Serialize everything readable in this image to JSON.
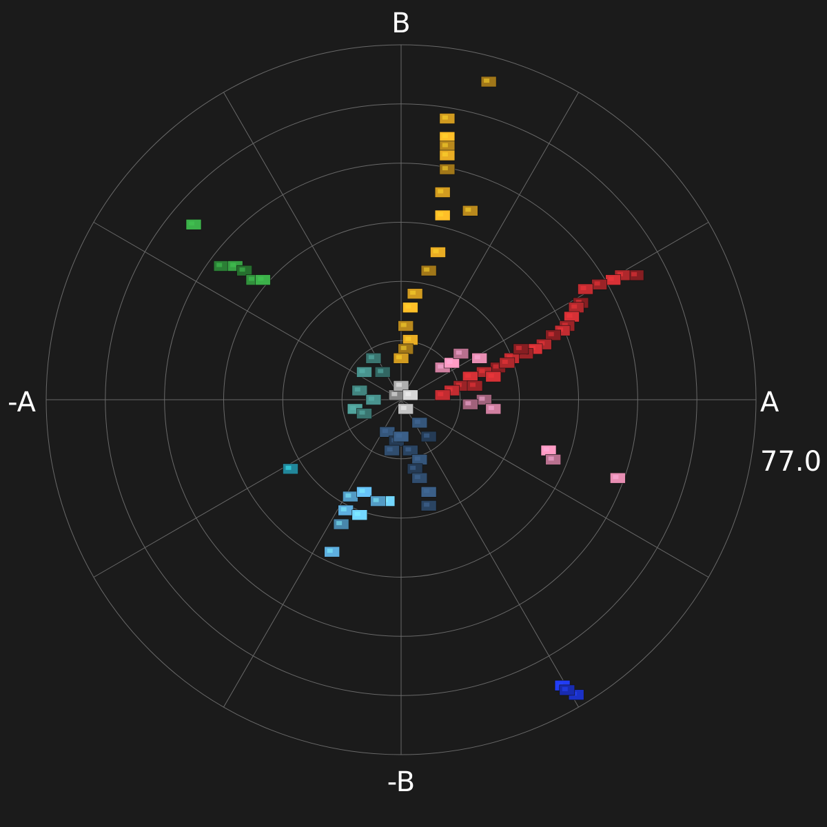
{
  "chart_data": {
    "type": "scatter",
    "subtype": "polar-vectorscope",
    "axis_labels": {
      "right": "A",
      "left": "-A",
      "top": "B",
      "bottom": "-B"
    },
    "radius_label": "77.0",
    "r_max": 77.0,
    "ring_count": 6,
    "spoke_angles_deg": [
      0,
      30,
      60,
      90,
      120,
      150,
      180,
      210,
      240,
      270,
      300,
      330
    ],
    "point_units": "a/b chroma",
    "series": [
      {
        "name": "red",
        "color": "#a8262a",
        "points": [
          {
            "a": 51,
            "b": 27
          },
          {
            "a": 48,
            "b": 27
          },
          {
            "a": 46,
            "b": 26
          },
          {
            "a": 43,
            "b": 25
          },
          {
            "a": 40,
            "b": 24
          },
          {
            "a": 39,
            "b": 21
          },
          {
            "a": 38,
            "b": 20
          },
          {
            "a": 37,
            "b": 18
          },
          {
            "a": 36,
            "b": 16
          },
          {
            "a": 35,
            "b": 15
          },
          {
            "a": 33,
            "b": 14
          },
          {
            "a": 31,
            "b": 12
          },
          {
            "a": 29,
            "b": 11
          },
          {
            "a": 27,
            "b": 10
          },
          {
            "a": 24,
            "b": 9
          },
          {
            "a": 21,
            "b": 7
          },
          {
            "a": 18,
            "b": 6
          },
          {
            "a": 15,
            "b": 5
          },
          {
            "a": 13,
            "b": 3
          },
          {
            "a": 11,
            "b": 2
          },
          {
            "a": 26,
            "b": 11
          },
          {
            "a": 23,
            "b": 8
          },
          {
            "a": 20,
            "b": 5
          },
          {
            "a": 16,
            "b": 3
          },
          {
            "a": 9,
            "b": 1
          }
        ]
      },
      {
        "name": "orange-yellow",
        "color": "#c9951f",
        "points": [
          {
            "a": 19,
            "b": 69
          },
          {
            "a": 10,
            "b": 61
          },
          {
            "a": 10,
            "b": 57
          },
          {
            "a": 10,
            "b": 55
          },
          {
            "a": 10,
            "b": 53
          },
          {
            "a": 10,
            "b": 50
          },
          {
            "a": 9,
            "b": 45
          },
          {
            "a": 9,
            "b": 40
          },
          {
            "a": 15,
            "b": 41
          },
          {
            "a": 8,
            "b": 32
          },
          {
            "a": 6,
            "b": 28
          },
          {
            "a": 3,
            "b": 23
          },
          {
            "a": 2,
            "b": 20
          },
          {
            "a": 1,
            "b": 16
          },
          {
            "a": 2,
            "b": 13
          },
          {
            "a": 1,
            "b": 11
          },
          {
            "a": 0,
            "b": 9
          }
        ]
      },
      {
        "name": "pink",
        "color": "#c87a9a",
        "points": [
          {
            "a": 32,
            "b": -11
          },
          {
            "a": 33,
            "b": -13
          },
          {
            "a": 47,
            "b": -17
          },
          {
            "a": 18,
            "b": 0
          },
          {
            "a": 9,
            "b": 7
          },
          {
            "a": 11,
            "b": 8
          },
          {
            "a": 13,
            "b": 10
          },
          {
            "a": 17,
            "b": 9
          },
          {
            "a": 15,
            "b": -1
          },
          {
            "a": 20,
            "b": -2
          }
        ]
      },
      {
        "name": "green",
        "color": "#2f8a3a",
        "points": [
          {
            "a": -45,
            "b": 38
          },
          {
            "a": -39,
            "b": 29
          },
          {
            "a": -36,
            "b": 29
          },
          {
            "a": -34,
            "b": 28
          },
          {
            "a": -32,
            "b": 26
          },
          {
            "a": -30,
            "b": 26
          }
        ]
      },
      {
        "name": "teal",
        "color": "#3f7f7a",
        "points": [
          {
            "a": -6,
            "b": 9
          },
          {
            "a": -8,
            "b": 6
          },
          {
            "a": -4,
            "b": 6
          },
          {
            "a": -9,
            "b": 2
          },
          {
            "a": -10,
            "b": -2
          },
          {
            "a": -8,
            "b": -3
          },
          {
            "a": -6,
            "b": 0
          }
        ]
      },
      {
        "name": "cyan",
        "color": "#2aa7c0",
        "points": [
          {
            "a": -24,
            "b": -15
          }
        ]
      },
      {
        "name": "light-blue",
        "color": "#5aa8d6",
        "points": [
          {
            "a": -12,
            "b": -24
          },
          {
            "a": -9,
            "b": -25
          },
          {
            "a": -11,
            "b": -21
          },
          {
            "a": -8,
            "b": -20
          },
          {
            "a": -13,
            "b": -27
          },
          {
            "a": -15,
            "b": -33
          },
          {
            "a": -3,
            "b": -22
          },
          {
            "a": -5,
            "b": -22
          }
        ]
      },
      {
        "name": "slate-blue",
        "color": "#2e4a6a",
        "points": [
          {
            "a": -3,
            "b": -7
          },
          {
            "a": -1,
            "b": -9
          },
          {
            "a": -2,
            "b": -11
          },
          {
            "a": 0,
            "b": -8
          },
          {
            "a": 2,
            "b": -11
          },
          {
            "a": 4,
            "b": -13
          },
          {
            "a": 3,
            "b": -15
          },
          {
            "a": 4,
            "b": -17
          },
          {
            "a": 6,
            "b": -20
          },
          {
            "a": 6,
            "b": -23
          },
          {
            "a": 4,
            "b": -5
          },
          {
            "a": 6,
            "b": -8
          }
        ]
      },
      {
        "name": "deep-blue",
        "color": "#1a2fbf",
        "points": [
          {
            "a": 38,
            "b": -64
          },
          {
            "a": 35,
            "b": -62
          },
          {
            "a": 36,
            "b": -63
          }
        ]
      },
      {
        "name": "neutral",
        "color": "#a8a8a8",
        "points": [
          {
            "a": 1,
            "b": -2
          },
          {
            "a": -1,
            "b": 1
          },
          {
            "a": 0,
            "b": 3
          },
          {
            "a": 2,
            "b": 1
          }
        ]
      }
    ]
  }
}
